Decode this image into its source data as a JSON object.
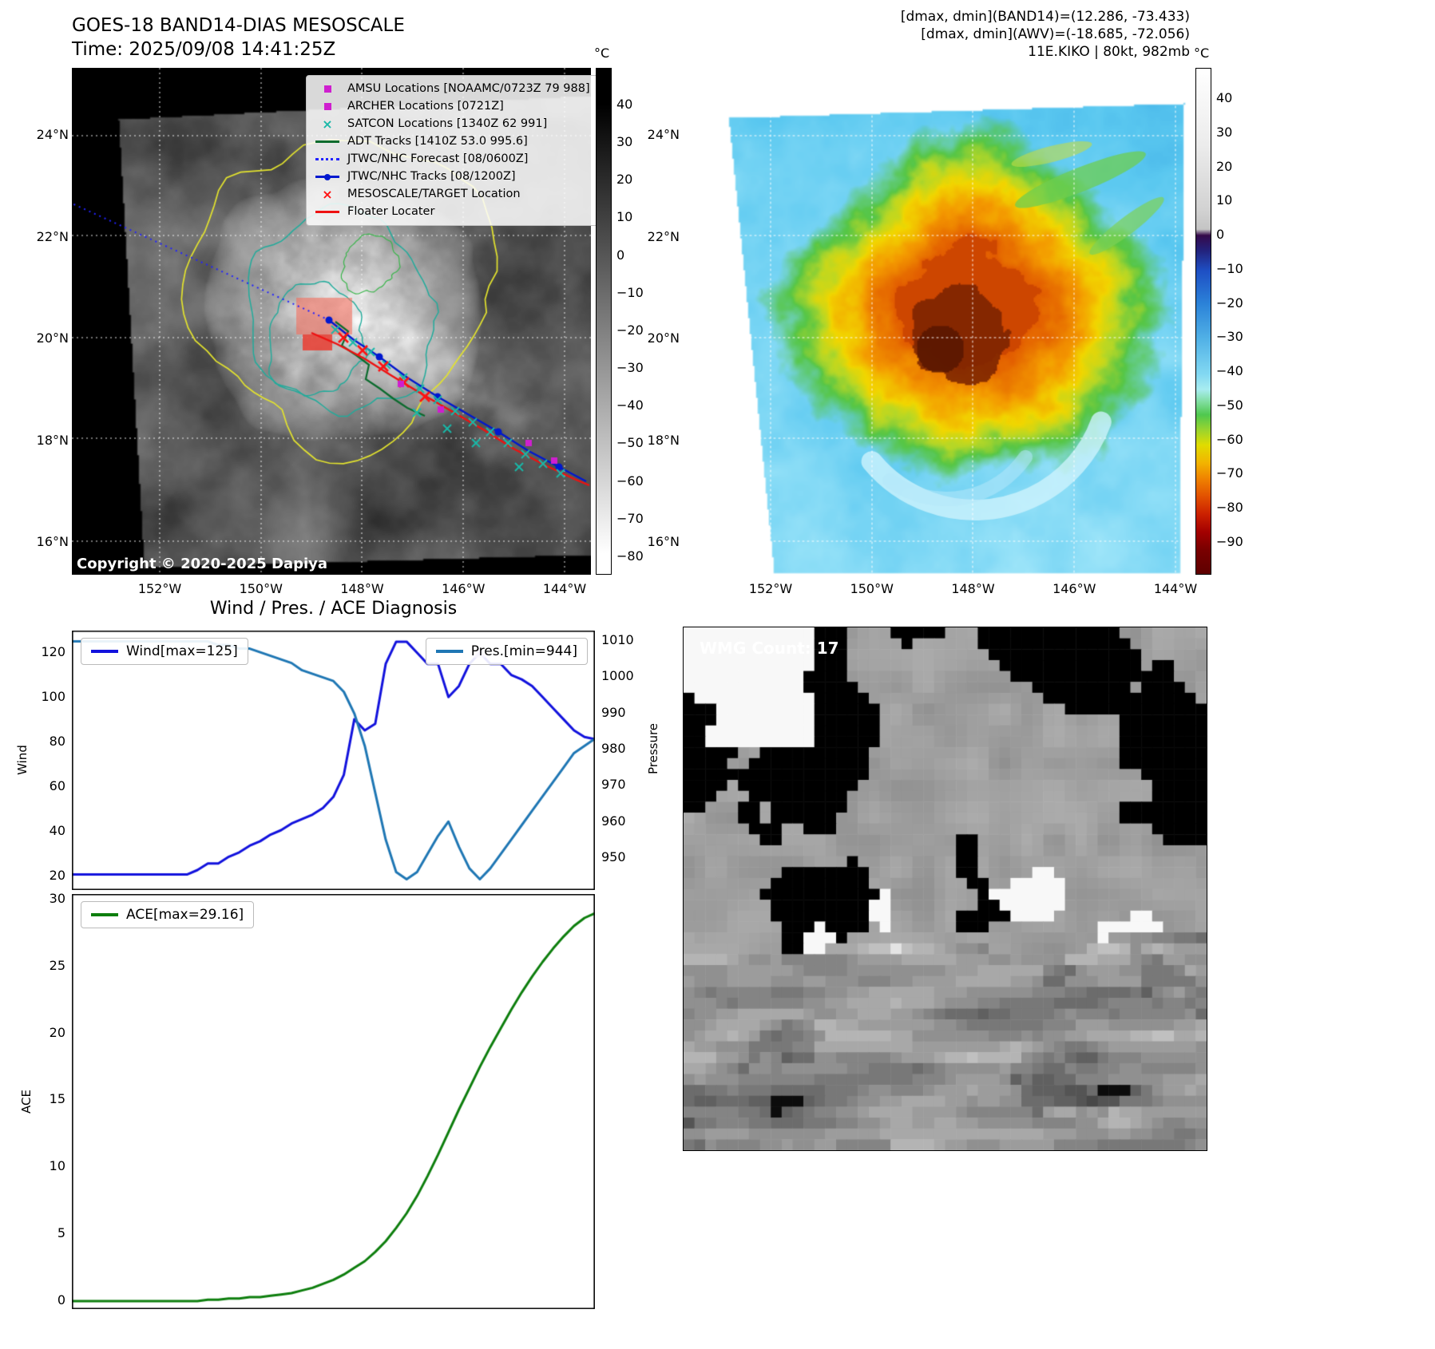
{
  "panels": {
    "ir": {
      "title": "GOES-18 BAND14-DIAS MESOSCALE",
      "subtitle": "Time: 2025/09/08 14:41:25Z",
      "copyright": "Copyright © 2020-2025 Dapiya",
      "colorbar_unit": "°C",
      "colorbar_ticks": [
        "40",
        "30",
        "20",
        "10",
        "0",
        "−10",
        "−20",
        "−30",
        "−40",
        "−50",
        "−60",
        "−70",
        "−80"
      ],
      "lat_ticks": [
        "24°N",
        "22°N",
        "20°N",
        "18°N",
        "16°N"
      ],
      "lon_ticks": [
        "152°W",
        "150°W",
        "148°W",
        "146°W",
        "144°W"
      ],
      "legend": [
        {
          "marker": "square",
          "color": "#cf1fcf",
          "label": "AMSU Locations [NOAAMC/0723Z 79 988]"
        },
        {
          "marker": "square",
          "color": "#cf1fcf",
          "label": "ARCHER Locations [0721Z]"
        },
        {
          "marker": "x",
          "color": "#19b8a8",
          "label": "SATCON Locations [1340Z 62 991]"
        },
        {
          "marker": "line",
          "color": "#0b6b2d",
          "label": "ADT Tracks [1410Z 53.0 995.6]"
        },
        {
          "marker": "dotted",
          "color": "#2222ff",
          "label": "JTWC/NHC Forecast [08/0600Z]"
        },
        {
          "marker": "line-dot",
          "color": "#0018cf",
          "label": "JTWC/NHC Tracks [08/1200Z]"
        },
        {
          "marker": "x",
          "color": "#ff1111",
          "label": "MESOSCALE/TARGET Location"
        },
        {
          "marker": "line",
          "color": "#ee1111",
          "label": "Floater Locater"
        }
      ]
    },
    "awv": {
      "header_lines": [
        "[dmax, dmin](BAND14)=(12.286, -73.433)",
        "[dmax, dmin](AWV)=(-18.685, -72.056)",
        "11E.KIKO | 80kt, 982mb"
      ],
      "storm_id": "11E.KIKO",
      "intensity": "80kt",
      "pressure": "982mb",
      "colorbar_unit": "°C",
      "colorbar_ticks": [
        "40",
        "30",
        "20",
        "10",
        "0",
        "−10",
        "−20",
        "−30",
        "−40",
        "−50",
        "−60",
        "−70",
        "−80",
        "−90"
      ],
      "lat_ticks": [
        "24°N",
        "22°N",
        "20°N",
        "18°N",
        "16°N"
      ],
      "lon_ticks": [
        "152°W",
        "150°W",
        "148°W",
        "146°W",
        "144°W"
      ]
    },
    "wmg": {
      "label": "WMG Count: 17"
    }
  },
  "chart_data": [
    {
      "id": "wind_pres",
      "type": "line",
      "title": "Wind / Pres. / ACE Diagnosis",
      "left_axis": {
        "label": "Wind",
        "tick_labels": [
          "120",
          "100",
          "80",
          "60",
          "40",
          "20"
        ],
        "lim": [
          13,
          130
        ]
      },
      "right_axis": {
        "label": "Pressure",
        "tick_labels": [
          "1010",
          "1000",
          "990",
          "980",
          "970",
          "960",
          "950"
        ],
        "lim": [
          941,
          1013
        ]
      },
      "series": [
        {
          "name": "Wind[max=125]",
          "axis": "left",
          "color": "#1212dd",
          "width": 3,
          "values": [
            20,
            20,
            20,
            20,
            20,
            20,
            20,
            20,
            20,
            20,
            20,
            20,
            22,
            25,
            25,
            28,
            30,
            33,
            35,
            38,
            40,
            43,
            45,
            47,
            50,
            55,
            65,
            90,
            85,
            88,
            115,
            125,
            125,
            120,
            115,
            115,
            100,
            105,
            115,
            120,
            115,
            115,
            110,
            108,
            105,
            100,
            95,
            90,
            85,
            82,
            81
          ]
        },
        {
          "name": "Pres.[min=944]",
          "axis": "right",
          "color": "#1f77b4",
          "width": 3,
          "values": [
            1010,
            1010,
            1010,
            1010,
            1010,
            1010,
            1010,
            1010,
            1010,
            1010,
            1010,
            1010,
            1010,
            1010,
            1009,
            1009,
            1008,
            1008,
            1007,
            1006,
            1005,
            1004,
            1002,
            1001,
            1000,
            999,
            996,
            990,
            981,
            968,
            955,
            946,
            944,
            946,
            951,
            956,
            960,
            953,
            947,
            944,
            947,
            951,
            955,
            959,
            963,
            967,
            971,
            975,
            979,
            981,
            983
          ]
        }
      ],
      "markers": [
        {
          "pos": 0.78,
          "value": 120,
          "axis": "left",
          "shape": "triangle",
          "color": "#b9a8e0"
        }
      ]
    },
    {
      "id": "ace",
      "type": "line",
      "left_axis": {
        "label": "ACE",
        "tick_labels": [
          "30",
          "25",
          "20",
          "15",
          "10",
          "5",
          "0"
        ],
        "lim": [
          -0.6,
          30.6
        ]
      },
      "series": [
        {
          "name": "ACE[max=29.16]",
          "axis": "left",
          "color": "#0d7e0d",
          "width": 3,
          "values": [
            0,
            0,
            0,
            0,
            0,
            0,
            0,
            0,
            0,
            0,
            0,
            0,
            0,
            0.1,
            0.1,
            0.2,
            0.2,
            0.3,
            0.3,
            0.4,
            0.5,
            0.6,
            0.8,
            1.0,
            1.3,
            1.6,
            2.0,
            2.5,
            3.0,
            3.7,
            4.5,
            5.5,
            6.6,
            7.9,
            9.4,
            11.0,
            12.7,
            14.4,
            16.0,
            17.6,
            19.1,
            20.5,
            21.9,
            23.2,
            24.4,
            25.5,
            26.5,
            27.4,
            28.2,
            28.8,
            29.16
          ]
        }
      ]
    }
  ]
}
